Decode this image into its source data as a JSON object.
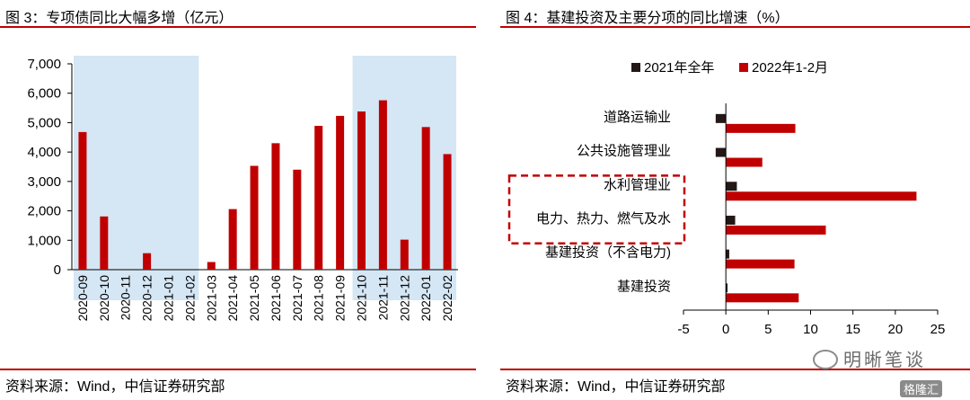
{
  "left": {
    "title": "图 3：专项债同比大幅多增（亿元）",
    "source": "资料来源：Wind，中信证券研究部"
  },
  "right": {
    "title": "图 4：基建投资及主要分项的同比增速（%）",
    "source": "资料来源：Wind，中信证券研究部"
  },
  "watermark": {
    "text": "明晰笔谈",
    "brand": "格隆汇"
  },
  "colors": {
    "red": "#c00000",
    "black": "#231815",
    "shade": "#d5e6f5",
    "accent": "#c00000"
  },
  "chart_data": [
    {
      "type": "bar",
      "categories": [
        "2020-09",
        "2020-10",
        "2020-11",
        "2020-12",
        "2021-01",
        "2021-02",
        "2021-03",
        "2021-04",
        "2021-05",
        "2021-06",
        "2021-07",
        "2021-08",
        "2021-09",
        "2021-10",
        "2021-11",
        "2021-12",
        "2022-01",
        "2022-02"
      ],
      "values": [
        4680,
        1810,
        0,
        560,
        0,
        0,
        260,
        2060,
        3530,
        4300,
        3400,
        4890,
        5230,
        5380,
        5760,
        1020,
        4850,
        3930
      ],
      "ylim": [
        0,
        7000
      ],
      "yticks": [
        0,
        1000,
        2000,
        3000,
        4000,
        5000,
        6000,
        7000
      ],
      "ytick_labels": [
        "0",
        "1,000",
        "2,000",
        "3,000",
        "4,000",
        "5,000",
        "6,000",
        "7,000"
      ],
      "shaded_ranges": [
        [
          "2020-09",
          "2021-02"
        ],
        [
          "2021-10",
          "2022-02"
        ]
      ],
      "series_color": "#c00000"
    },
    {
      "type": "bar",
      "orientation": "horizontal",
      "categories": [
        "道路运输业",
        "公共设施管理业",
        "水利管理业",
        "电力、热力、燃气及水",
        "基建投资（不含电力)",
        "基建投资"
      ],
      "series": [
        {
          "name": "2021年全年",
          "values": [
            -1.2,
            -1.2,
            1.3,
            1.1,
            0.4,
            0.2
          ],
          "color": "#231815"
        },
        {
          "name": "2022年1-2月",
          "values": [
            8.2,
            4.3,
            22.5,
            11.8,
            8.1,
            8.6
          ],
          "color": "#c00000"
        }
      ],
      "xlim": [
        -5,
        25
      ],
      "xticks": [
        -5,
        0,
        5,
        10,
        15,
        20,
        25
      ],
      "xtick_labels": [
        "-5",
        "0",
        "5",
        "10",
        "15",
        "20",
        "25"
      ],
      "legend_position": "top",
      "highlighted_categories": [
        "水利管理业",
        "电力、热力、燃气及水"
      ]
    }
  ]
}
